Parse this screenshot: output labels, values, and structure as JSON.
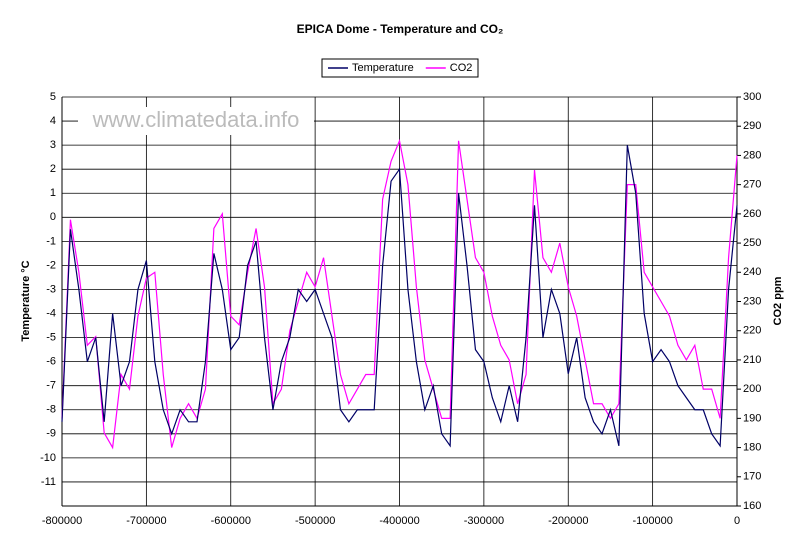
{
  "chart_data": {
    "type": "line",
    "title": "EPICA Dome - Temperature and CO₂",
    "watermark": "www.climatedata.info",
    "y_label": "Temperature °C",
    "y2_label": "CO2 ppm",
    "x": [
      -800000,
      -790000,
      -780000,
      -770000,
      -760000,
      -750000,
      -740000,
      -730000,
      -720000,
      -710000,
      -700000,
      -690000,
      -680000,
      -670000,
      -660000,
      -650000,
      -640000,
      -630000,
      -620000,
      -610000,
      -600000,
      -590000,
      -580000,
      -570000,
      -560000,
      -550000,
      -540000,
      -530000,
      -520000,
      -510000,
      -500000,
      -490000,
      -480000,
      -470000,
      -460000,
      -450000,
      -440000,
      -430000,
      -420000,
      -410000,
      -400000,
      -390000,
      -380000,
      -370000,
      -360000,
      -350000,
      -340000,
      -330000,
      -320000,
      -310000,
      -300000,
      -290000,
      -280000,
      -270000,
      -260000,
      -250000,
      -240000,
      -230000,
      -220000,
      -210000,
      -200000,
      -190000,
      -180000,
      -170000,
      -160000,
      -150000,
      -140000,
      -130000,
      -120000,
      -110000,
      -100000,
      -90000,
      -80000,
      -70000,
      -60000,
      -50000,
      -40000,
      -30000,
      -20000,
      -10000,
      0
    ],
    "series": [
      {
        "name": "Temperature",
        "color": "#000066",
        "values": [
          -8.5,
          -0.5,
          -3,
          -6,
          -5,
          -8.5,
          -4,
          -7,
          -6,
          -3,
          -1.8,
          -6,
          -8,
          -9,
          -8,
          -8.5,
          -8.5,
          -6,
          -1.5,
          -3,
          -5.5,
          -5,
          -2,
          -1,
          -5,
          -8,
          -6,
          -5,
          -3,
          -3.5,
          -3,
          -4,
          -5,
          -8,
          -8.5,
          -8,
          -8,
          -8,
          -2,
          1.5,
          2,
          -3,
          -6,
          -8,
          -7,
          -9,
          -9.5,
          1,
          -2,
          -5.5,
          -6,
          -7.5,
          -8.5,
          -7,
          -8.5,
          -5,
          0.5,
          -5,
          -3,
          -4,
          -6.5,
          -5,
          -7.5,
          -8.5,
          -9,
          -8,
          -9.5,
          3,
          1,
          -4,
          -6,
          -5.5,
          -6,
          -7,
          -7.5,
          -8,
          -8,
          -9,
          -9.5,
          -3,
          0.5
        ]
      },
      {
        "name": "CO2",
        "color": "#ff00ff",
        "axis": "y2",
        "values": [
          190,
          258,
          240,
          215,
          218,
          185,
          180,
          205,
          200,
          225,
          238,
          240,
          205,
          180,
          190,
          195,
          190,
          200,
          255,
          260,
          225,
          222,
          240,
          255,
          235,
          195,
          200,
          220,
          230,
          240,
          235,
          245,
          225,
          205,
          195,
          200,
          205,
          205,
          265,
          278,
          285,
          270,
          235,
          210,
          200,
          190,
          190,
          285,
          265,
          245,
          240,
          225,
          215,
          210,
          195,
          205,
          275,
          245,
          240,
          250,
          235,
          225,
          210,
          195,
          195,
          190,
          195,
          270,
          270,
          240,
          235,
          230,
          225,
          215,
          210,
          215,
          200,
          200,
          190,
          245,
          280
        ]
      }
    ],
    "xlim": [
      -800000,
      0
    ],
    "xticks": [
      -800000,
      -700000,
      -600000,
      -500000,
      -400000,
      -300000,
      -200000,
      -100000,
      0
    ],
    "ylim": [
      -12,
      5
    ],
    "yticks": [
      5,
      4,
      3,
      2,
      1,
      0,
      -1,
      -2,
      -3,
      -4,
      -5,
      -6,
      -7,
      -8,
      -9,
      -10,
      -11
    ],
    "y2lim": [
      160,
      300
    ],
    "y2ticks": [
      300,
      290,
      280,
      270,
      260,
      250,
      240,
      230,
      220,
      210,
      200,
      190,
      180,
      170,
      160
    ],
    "grid": true,
    "legend": "top"
  }
}
